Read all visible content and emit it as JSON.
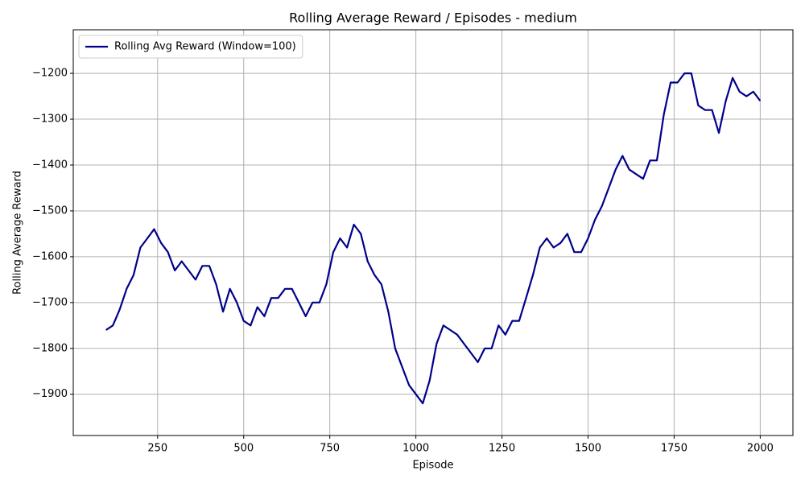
{
  "chart_data": {
    "type": "line",
    "title": "Rolling Average Reward / Episodes - medium",
    "x_label": "Episode",
    "y_label": "Rolling Average Reward",
    "x": [
      100,
      120,
      140,
      160,
      180,
      200,
      220,
      240,
      260,
      280,
      300,
      320,
      340,
      360,
      380,
      400,
      420,
      440,
      460,
      480,
      500,
      520,
      540,
      560,
      580,
      600,
      620,
      640,
      660,
      680,
      700,
      720,
      740,
      760,
      780,
      800,
      820,
      840,
      860,
      880,
      900,
      920,
      940,
      960,
      980,
      1000,
      1020,
      1040,
      1060,
      1080,
      1100,
      1120,
      1140,
      1160,
      1180,
      1200,
      1220,
      1240,
      1260,
      1280,
      1300,
      1320,
      1340,
      1360,
      1380,
      1400,
      1420,
      1440,
      1460,
      1480,
      1500,
      1520,
      1540,
      1560,
      1580,
      1600,
      1620,
      1640,
      1660,
      1680,
      1700,
      1720,
      1740,
      1760,
      1780,
      1800,
      1820,
      1840,
      1860,
      1880,
      1900,
      1920,
      1940,
      1960,
      1980,
      2000
    ],
    "series": [
      {
        "name": "Rolling Avg Reward (Window=100)",
        "color": "#00008b",
        "values": [
          -1760,
          -1750,
          -1715,
          -1670,
          -1640,
          -1580,
          -1560,
          -1540,
          -1570,
          -1590,
          -1630,
          -1610,
          -1630,
          -1650,
          -1620,
          -1620,
          -1660,
          -1720,
          -1670,
          -1700,
          -1740,
          -1750,
          -1710,
          -1730,
          -1690,
          -1690,
          -1670,
          -1670,
          -1700,
          -1730,
          -1700,
          -1700,
          -1660,
          -1590,
          -1560,
          -1580,
          -1530,
          -1550,
          -1610,
          -1640,
          -1660,
          -1720,
          -1800,
          -1840,
          -1880,
          -1900,
          -1920,
          -1870,
          -1790,
          -1750,
          -1760,
          -1770,
          -1790,
          -1810,
          -1830,
          -1800,
          -1800,
          -1750,
          -1770,
          -1740,
          -1740,
          -1690,
          -1640,
          -1580,
          -1560,
          -1580,
          -1570,
          -1550,
          -1590,
          -1590,
          -1560,
          -1520,
          -1490,
          -1450,
          -1410,
          -1380,
          -1410,
          -1420,
          -1430,
          -1390,
          -1390,
          -1290,
          -1220,
          -1220,
          -1200,
          -1200,
          -1270,
          -1280,
          -1280,
          -1330,
          -1260,
          -1210,
          -1240,
          -1250,
          -1240,
          -1260
        ]
      }
    ],
    "xlim": [
      5,
      2095
    ],
    "ylim": [
      -1990,
      -1105
    ],
    "xticks": [
      250,
      500,
      750,
      1000,
      1250,
      1500,
      1750,
      2000
    ],
    "yticks": [
      {
        "value": -1900,
        "label": "−1900"
      },
      {
        "value": -1800,
        "label": "−1800"
      },
      {
        "value": -1700,
        "label": "−1700"
      },
      {
        "value": -1600,
        "label": "−1600"
      },
      {
        "value": -1500,
        "label": "−1500"
      },
      {
        "value": -1400,
        "label": "−1400"
      },
      {
        "value": -1300,
        "label": "−1300"
      },
      {
        "value": -1200,
        "label": "−1200"
      }
    ],
    "grid": true,
    "legend": "upper left"
  }
}
